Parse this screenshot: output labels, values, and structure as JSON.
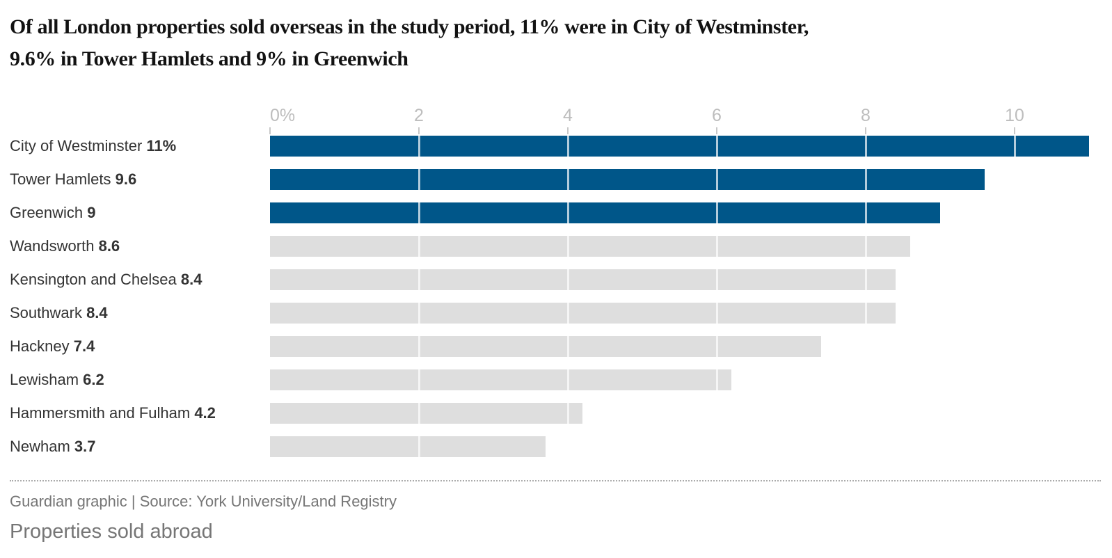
{
  "title": "Of all London properties sold overseas in the study period, 11% were in City of Westminster, 9.6% in Tower Hamlets and 9% in Greenwich",
  "title_lines": [
    "Of all London properties sold overseas in the study period, 11% were in City of Westminster,",
    "9.6% in Tower Hamlets and 9% in Greenwich"
  ],
  "chart_data": {
    "type": "bar",
    "orientation": "horizontal",
    "title": "Of all London properties sold overseas in the study period, 11% were in City of Westminster, 9.6% in Tower Hamlets and 9% in Greenwich",
    "categories": [
      "City of Westminster",
      "Tower Hamlets",
      "Greenwich",
      "Wandsworth",
      "Kensington and Chelsea",
      "Southwark",
      "Hackney",
      "Lewisham",
      "Hammersmith and Fulham",
      "Newham"
    ],
    "values": [
      11,
      9.6,
      9,
      8.6,
      8.4,
      8.4,
      7.4,
      6.2,
      4.2,
      3.7
    ],
    "value_labels": [
      "11%",
      "9.6",
      "9",
      "8.6",
      "8.4",
      "8.4",
      "7.4",
      "6.2",
      "4.2",
      "3.7"
    ],
    "highlighted": [
      true,
      true,
      true,
      false,
      false,
      false,
      false,
      false,
      false,
      false
    ],
    "xlabel": "",
    "ylabel": "",
    "xlim": [
      0,
      11
    ],
    "x_ticks": [
      {
        "value": 0,
        "label": "0%"
      },
      {
        "value": 2,
        "label": "2"
      },
      {
        "value": 4,
        "label": "4"
      },
      {
        "value": 6,
        "label": "6"
      },
      {
        "value": 8,
        "label": "8"
      },
      {
        "value": 10,
        "label": "10"
      }
    ],
    "grid": "vertical gridlines at labeled ticks, drawn white over bars",
    "legend_position": "none"
  },
  "colors": {
    "bar_highlight": "#005689",
    "bar_default": "#dedede",
    "title_text": "#121212",
    "label_text": "#333333",
    "tick_text": "#bdbdbd",
    "tick_mark": "#c8c8c8",
    "gridline": "rgba(255,255,255,0.7)",
    "divider": "#ababab",
    "footer_text": "#767676"
  },
  "footer": {
    "credit": "Guardian graphic | Source: York University/Land Registry",
    "caption": "Properties sold abroad"
  }
}
